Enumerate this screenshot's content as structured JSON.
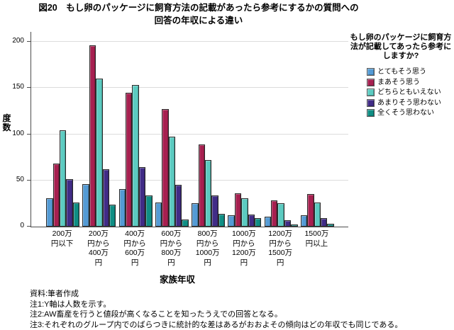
{
  "title": {
    "line1": "図20　もし卵のパッケージに飼育方法の記載があったら参考にするかの質問への",
    "line2": "回答の年収による違い"
  },
  "chart_data": {
    "type": "bar",
    "title": "図20 もし卵のパッケージに飼育方法の記載があったら参考にするかの質問への回答の年収による違い",
    "xlabel": "家族年収",
    "ylabel": "度数",
    "ylim": [
      0,
      200
    ],
    "yticks": [
      0,
      50,
      100,
      150,
      200
    ],
    "grid": true,
    "legend_position": "right",
    "legend_title": "もし卵のパッケージに飼育方法が記載してあったら参考にしますか?",
    "categories": [
      "200万\n円以下",
      "200万\n円から\n400万\n円",
      "400万\n円から\n600万\n円",
      "600万\n円から\n800万\n円",
      "800万\n円から\n1000万\n円",
      "1000万\n円から\n1200万\n円",
      "1200万\n円から\n1500万\n円",
      "1500万\n円以上"
    ],
    "series": [
      {
        "name": "とてもそう思う",
        "color": "#549BD5",
        "values": [
          31,
          46,
          41,
          26,
          25,
          12,
          11,
          12
        ]
      },
      {
        "name": "まあそう思う",
        "color": "#A72050",
        "values": [
          68,
          196,
          145,
          127,
          89,
          36,
          28,
          35
        ]
      },
      {
        "name": "どちらともいえない",
        "color": "#5CCBC1",
        "values": [
          104,
          160,
          153,
          97,
          72,
          31,
          25,
          26
        ]
      },
      {
        "name": "あまりそう思わない",
        "color": "#412C87",
        "values": [
          51,
          62,
          64,
          45,
          34,
          13,
          7,
          9
        ]
      },
      {
        "name": "全くそう思わない",
        "color": "#0F8E84",
        "values": [
          26,
          24,
          34,
          8,
          14,
          9,
          2,
          3
        ]
      }
    ]
  },
  "legend": {
    "title": "もし卵のパッケージに飼育方\n法が記載してあったら参考に\nしますか?"
  },
  "notes": [
    "資料:筆者作成",
    "注1:Y軸は人数を示す。",
    "注2:AW畜産を行うと値段が高くなることを知ったうえでの回答となる。",
    "注3:それぞれのグループ内でのばらつきに統計的な差はあるがおおよその傾向はどの年収でも同じである。"
  ]
}
